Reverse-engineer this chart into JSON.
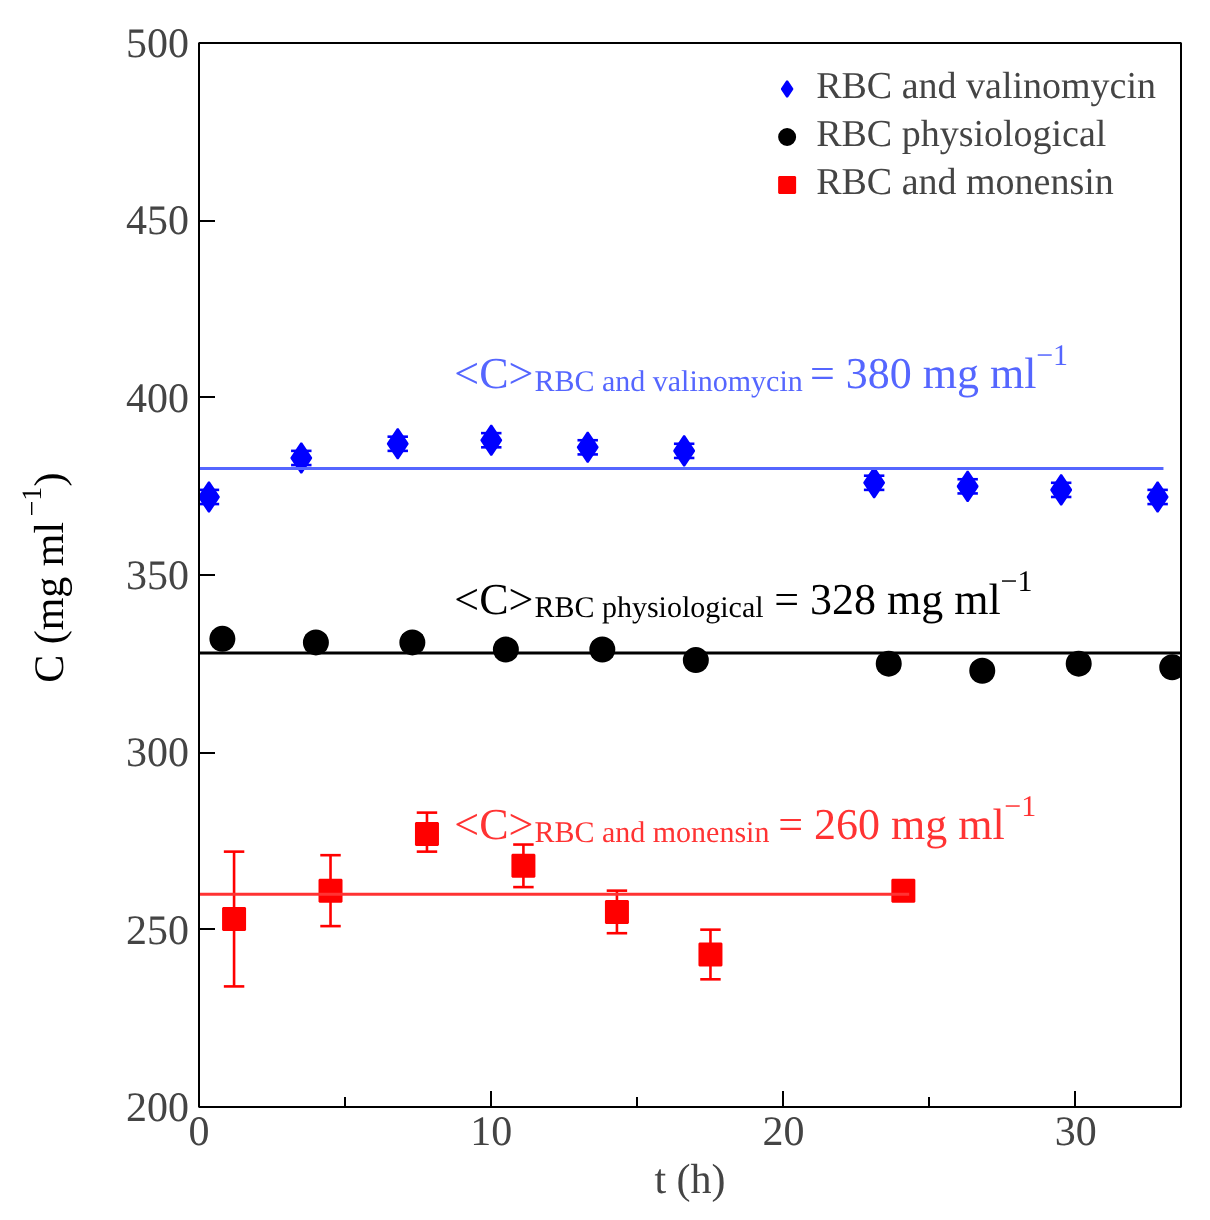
{
  "chart_data": {
    "type": "scatter",
    "xlabel": "t (h)",
    "ylabel": "C (mg ml$^{−1}$)",
    "xlim": [
      0,
      33.6
    ],
    "ylim": [
      200,
      500
    ],
    "xticks": [
      0,
      10,
      20,
      30
    ],
    "yticks": [
      200,
      250,
      300,
      350,
      400,
      450,
      500
    ],
    "grid": false,
    "legend": "top right",
    "series": [
      {
        "name": "RBC and valinomycin",
        "color": "#0000ff",
        "marker": "diamond",
        "x": [
          0.34,
          3.5,
          6.8,
          10,
          13.3,
          16.6,
          23.1,
          26.3,
          29.5,
          32.8
        ],
        "values": [
          372,
          383,
          387,
          388,
          386,
          385,
          376,
          375,
          374,
          372
        ],
        "errors": [
          2,
          2,
          2,
          2,
          2,
          2,
          2,
          2,
          2,
          2
        ]
      },
      {
        "name": "RBC physiological",
        "color": "#000000",
        "marker": "circle",
        "x": [
          0.8,
          4.0,
          7.3,
          10.5,
          13.8,
          17.0,
          23.6,
          26.8,
          30.1,
          33.3
        ],
        "values": [
          332,
          331,
          331,
          329,
          329,
          326,
          325,
          323,
          325,
          324
        ],
        "errors": [
          2,
          2,
          2,
          2,
          2,
          2,
          2,
          2,
          2,
          2
        ]
      },
      {
        "name": "RBC and monensin",
        "color": "#ff0000",
        "marker": "square",
        "x": [
          1.2,
          4.5,
          7.8,
          11.1,
          14.3,
          17.5,
          24.1
        ],
        "values": [
          253,
          261,
          277,
          268,
          255,
          243,
          261
        ],
        "errors": [
          [
            234,
            272
          ],
          [
            251,
            271
          ],
          [
            272,
            283
          ],
          [
            262,
            274
          ],
          [
            249,
            261
          ],
          [
            236,
            250
          ],
          [
            259,
            263
          ]
        ]
      },
      {
        "type": "line",
        "color": "#5566ff",
        "x": [
          0,
          33
        ],
        "values": [
          380,
          380
        ]
      },
      {
        "type": "line",
        "color": "#000000",
        "x": [
          0,
          33.6
        ],
        "values": [
          328,
          328
        ]
      },
      {
        "type": "line",
        "color": "#ff3333",
        "x": [
          0,
          24.3
        ],
        "values": [
          260,
          260
        ]
      }
    ],
    "annotations": [
      "<C>$_{RBC and valinomycin}$ = 380 mg ml$^{−1}$",
      "<C>$_{RBC physiological}$ = 328 mg ml$^{−1}$",
      "<C>$_{RBC and monensin}$ = 260 mg ml$^{−1}$"
    ]
  }
}
